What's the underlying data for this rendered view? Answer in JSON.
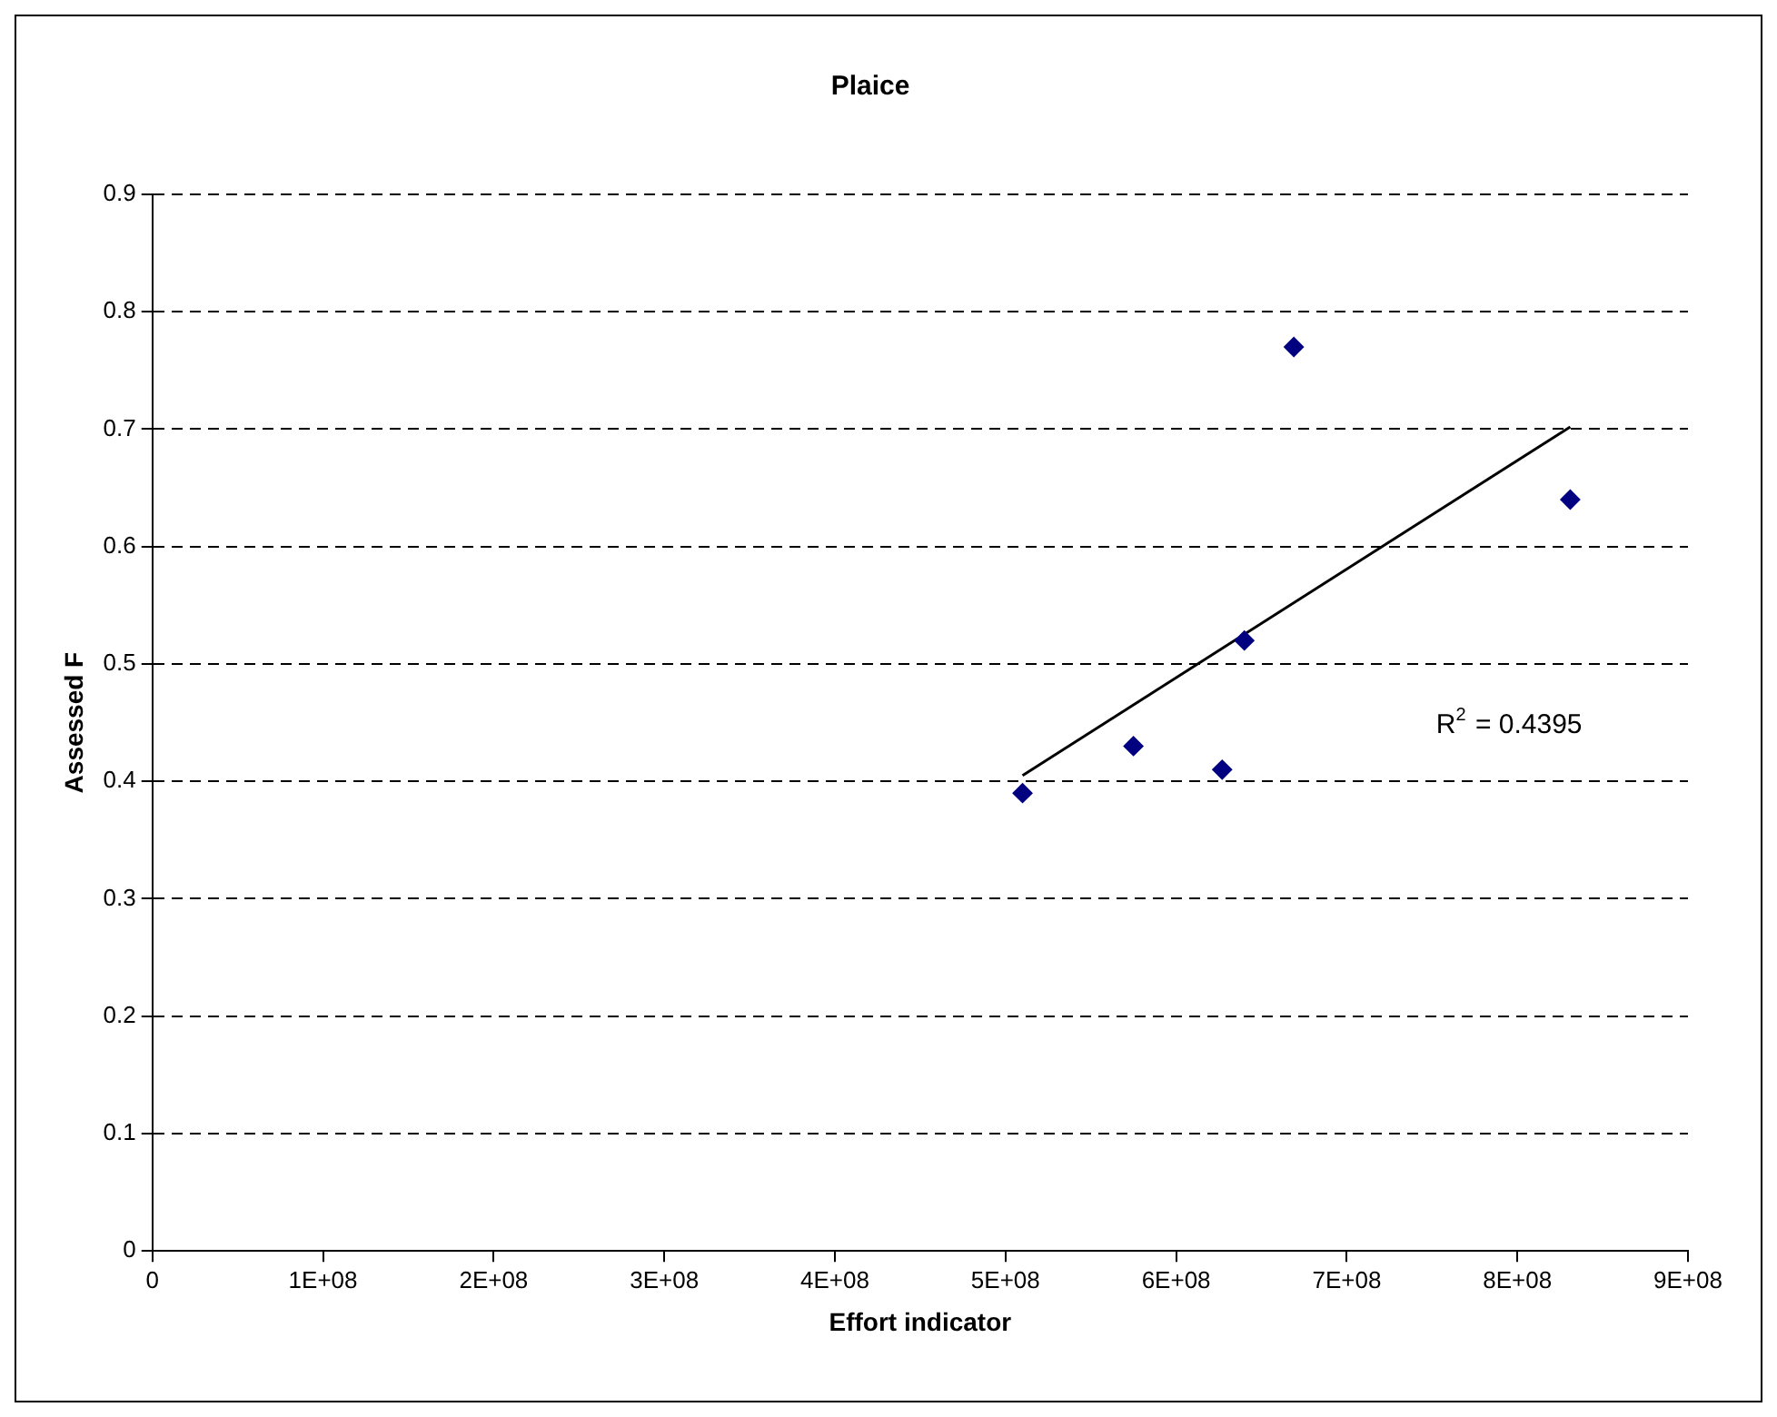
{
  "chart_data": {
    "type": "scatter",
    "title": "Plaice",
    "xlabel": "Effort indicator",
    "ylabel": "Assessed F",
    "series": [
      {
        "color": "#000080",
        "marker": "diamond",
        "x": [
          510000000,
          575000000,
          627000000,
          640000000,
          669000000,
          831000000
        ],
        "values": [
          0.39,
          0.43,
          0.41,
          0.52,
          0.77,
          0.64
        ]
      },
      {
        "type": "line",
        "color": "#000000",
        "marker": "none",
        "line_style": "solid",
        "x": [
          510000000,
          831000000
        ],
        "values": [
          0.405,
          0.702
        ]
      }
    ],
    "annotations": [
      "R$^{2}$ = 0.4395"
    ],
    "xlim": [
      0,
      900000000
    ],
    "xticks": [
      0,
      {
        "value": 100000000,
        "label": "1E+08"
      },
      {
        "value": 200000000,
        "label": "2E+08"
      },
      {
        "value": 300000000,
        "label": "3E+08"
      },
      {
        "value": 400000000,
        "label": "4E+08"
      },
      {
        "value": 500000000,
        "label": "5E+08"
      },
      {
        "value": 600000000,
        "label": "6E+08"
      },
      {
        "value": 700000000,
        "label": "7E+08"
      },
      {
        "value": 800000000,
        "label": "8E+08"
      },
      {
        "value": 900000000,
        "label": "9E+08"
      }
    ],
    "ylim": [
      0,
      0.9
    ],
    "yticks": [
      0,
      0.1,
      0.2,
      0.3,
      0.4,
      0.5,
      0.6,
      0.7,
      0.8,
      0.9
    ],
    "grid": "y",
    "legend": false
  }
}
